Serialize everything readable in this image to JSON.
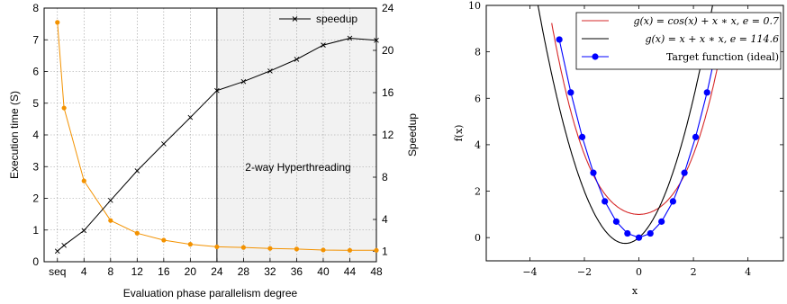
{
  "chart_data": [
    {
      "type": "line",
      "xlabel": "Evaluation phase parallelism degree",
      "ylabel": "Execution time (S)",
      "y2label": "Speedup",
      "x_tick_labels": [
        "seq",
        "4",
        "8",
        "12",
        "16",
        "20",
        "24",
        "28",
        "32",
        "36",
        "40",
        "44",
        "48"
      ],
      "x_tick_positions": [
        0,
        4,
        8,
        12,
        16,
        20,
        24,
        28,
        32,
        36,
        40,
        44,
        48
      ],
      "xlim": [
        -2,
        48
      ],
      "ylim": [
        0,
        8
      ],
      "y_ticks": [
        0,
        1,
        2,
        3,
        4,
        5,
        6,
        7,
        8
      ],
      "y2lim": [
        0,
        24
      ],
      "y2_ticks": [
        1,
        4,
        8,
        12,
        16,
        20,
        24
      ],
      "grid": true,
      "shaded_region": {
        "from": 24,
        "to": 48,
        "label": "2-way Hyperthreading"
      },
      "legend": {
        "position": "top-right",
        "entries": [
          "speedup"
        ]
      },
      "series": [
        {
          "name": "",
          "axis": "left",
          "color": "#f39200",
          "marker": "circle",
          "x": [
            0,
            1,
            4,
            8,
            12,
            16,
            20,
            24,
            28,
            32,
            36,
            40,
            44,
            48
          ],
          "values": [
            7.55,
            4.85,
            2.55,
            1.3,
            0.9,
            0.68,
            0.55,
            0.47,
            0.45,
            0.42,
            0.4,
            0.37,
            0.36,
            0.36
          ]
        },
        {
          "name": "speedup",
          "axis": "right",
          "color": "#000000",
          "marker": "x",
          "x": [
            0,
            1,
            4,
            8,
            12,
            16,
            20,
            24,
            28,
            32,
            36,
            40,
            44,
            48
          ],
          "values": [
            1.0,
            1.55,
            2.95,
            5.8,
            8.6,
            11.15,
            13.65,
            16.2,
            17.05,
            18.05,
            19.15,
            20.5,
            21.15,
            20.95
          ]
        }
      ]
    },
    {
      "type": "line",
      "xlabel": "x",
      "ylabel": "f(x)",
      "xlim": [
        -5.6,
        5.3
      ],
      "ylim": [
        -1.0,
        10.0
      ],
      "x_ticks": [
        -4,
        -2,
        0,
        2,
        4
      ],
      "x_tick_labels": [
        "−4",
        "−2",
        "0",
        "2",
        "4"
      ],
      "y_ticks": [
        0,
        2,
        4,
        6,
        8,
        10
      ],
      "grid": false,
      "legend": {
        "position": "top-right"
      },
      "series": [
        {
          "name": "g(x) = cos(x) + x ∗ x, e = 0.7",
          "color": "#d62728",
          "function": "cos(x)+x*x",
          "x_range": [
            -3.2,
            3.2
          ]
        },
        {
          "name": "g(x) = x + x ∗ x, e = 114.6",
          "color": "#000000",
          "function": "x+x*x",
          "x_range": [
            -3.7,
            3.2
          ]
        },
        {
          "name": "Target function (ideal)",
          "color": "#0000ff",
          "marker": "circle",
          "x": [
            -2.92,
            -2.5,
            -2.08,
            -1.67,
            -1.25,
            -0.83,
            -0.42,
            0,
            0.42,
            0.83,
            1.25,
            1.67,
            2.08,
            2.5,
            2.92
          ],
          "values": [
            8.53,
            6.25,
            4.33,
            2.79,
            1.56,
            0.69,
            0.18,
            0.0,
            0.18,
            0.69,
            1.56,
            2.79,
            4.33,
            6.25,
            8.53
          ]
        }
      ]
    }
  ]
}
